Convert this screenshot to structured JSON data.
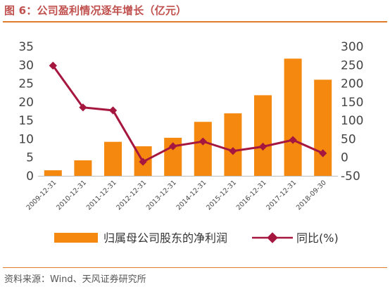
{
  "figure_title": "图 6：公司盈利情况逐年增长（亿元）",
  "source": "资料来源：Wind、天风证券研究所",
  "colors": {
    "bar": "#f5890f",
    "line": "#a6173f",
    "title": "#c0504d",
    "rule": "#e07b2a"
  },
  "chart_data": {
    "type": "bar",
    "categories": [
      "2009-12-31",
      "2010-12-31",
      "2011-12-31",
      "2012-12-31",
      "2013-12-31",
      "2014-12-31",
      "2015-12-31",
      "2016-12-31",
      "2017-12-31",
      "2018-09-30"
    ],
    "series": [
      {
        "name": "归属母公司股东的净利润",
        "type": "bar",
        "axis": "left",
        "values": [
          1.5,
          4.2,
          9.2,
          8.0,
          10.3,
          14.6,
          16.9,
          21.8,
          31.7,
          26.0
        ]
      },
      {
        "name": "同比(%)",
        "type": "line",
        "axis": "right",
        "values": [
          248,
          135,
          127,
          -12,
          30,
          43,
          17,
          29,
          47,
          11
        ]
      }
    ],
    "ylim_left": [
      0,
      35
    ],
    "yticks_left": [
      "0",
      "5",
      "10",
      "15",
      "20",
      "25",
      "30",
      "35"
    ],
    "ylim_right": [
      -50,
      300
    ],
    "yticks_right": [
      "-50",
      "0",
      "50",
      "100",
      "150",
      "200",
      "250",
      "300"
    ],
    "grid": false,
    "legend_position": "bottom"
  }
}
